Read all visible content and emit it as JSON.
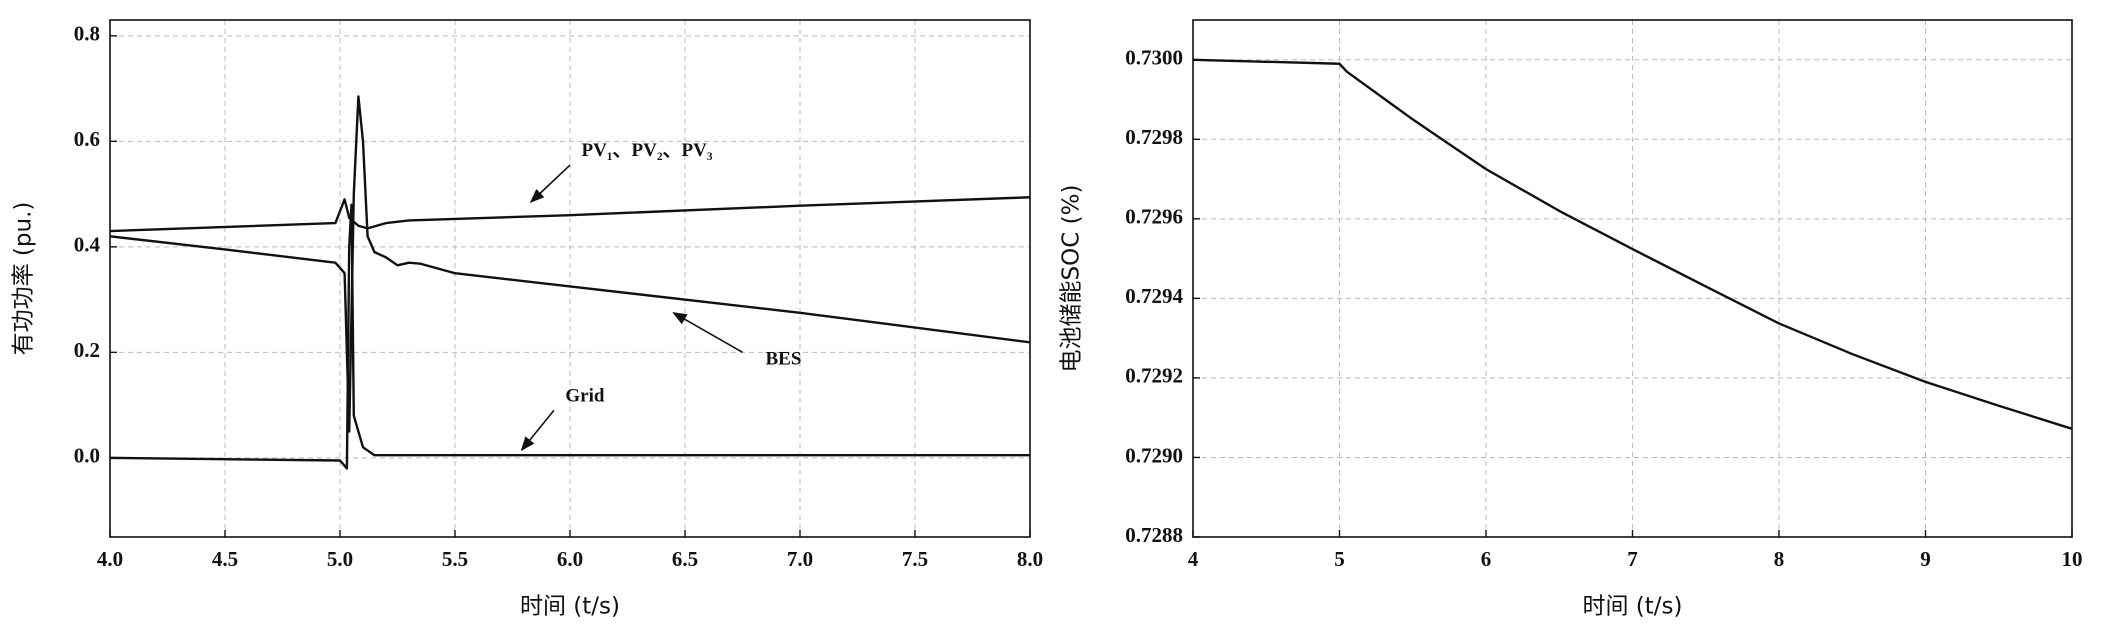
{
  "chart_data": [
    {
      "type": "line",
      "xlabel": "时间 (t/s)",
      "ylabel": "有功功率 (pu.)",
      "xlim": [
        4.0,
        8.0
      ],
      "xticks": [
        {
          "value": 4,
          "label": "4.0"
        },
        4.5,
        {
          "value": 5,
          "label": "5.0"
        },
        5.5,
        {
          "value": 6,
          "label": "6.0"
        },
        6.5,
        {
          "value": 7,
          "label": "7.0"
        },
        7.5,
        {
          "value": 8,
          "label": "8.0"
        }
      ],
      "ylim": [
        -0.15,
        0.83
      ],
      "yticks": [
        {
          "value": 0,
          "label": "0.0"
        },
        0.2,
        0.4,
        0.6,
        0.8
      ],
      "grid": true,
      "series": [
        {
          "name": "PV₁、PV₂、PV₃",
          "color": "#111111",
          "x": [
            4.0,
            4.98,
            5.02,
            5.04,
            5.08,
            5.12,
            5.2,
            5.3,
            6.0,
            7.0,
            8.0
          ],
          "values": [
            0.43,
            0.445,
            0.49,
            0.455,
            0.44,
            0.435,
            0.445,
            0.45,
            0.46,
            0.478,
            0.494
          ]
        },
        {
          "name": "BES",
          "color": "#111111",
          "x": [
            4.0,
            4.5,
            4.98,
            5.02,
            5.04,
            5.06,
            5.08,
            5.1,
            5.12,
            5.15,
            5.2,
            5.25,
            5.3,
            5.35,
            5.5,
            6.0,
            7.0,
            8.0
          ],
          "values": [
            0.42,
            0.395,
            0.37,
            0.35,
            0.05,
            0.5,
            0.685,
            0.6,
            0.42,
            0.39,
            0.38,
            0.365,
            0.37,
            0.368,
            0.35,
            0.325,
            0.275,
            0.219
          ]
        },
        {
          "name": "Grid",
          "color": "#111111",
          "x": [
            4.0,
            5.0,
            5.03,
            5.04,
            5.05,
            5.06,
            5.1,
            5.15,
            8.0
          ],
          "values": [
            0.0,
            -0.005,
            -0.02,
            0.4,
            0.48,
            0.08,
            0.02,
            0.005,
            0.005
          ]
        }
      ]
    },
    {
      "type": "line",
      "xlabel": "时间 (t/s)",
      "ylabel": "电池储能SOC (%)",
      "xlim": [
        4,
        10
      ],
      "xticks": [
        4,
        5,
        6,
        7,
        8,
        9,
        10
      ],
      "ylim": [
        0.7288,
        0.7301
      ],
      "yticks": [
        0.7288,
        {
          "value": 0.729,
          "label": "0.7290"
        },
        0.7292,
        0.7294,
        0.7296,
        0.7298,
        {
          "value": 0.73,
          "label": "0.7300"
        }
      ],
      "grid": true,
      "color": "#111111",
      "x": [
        4,
        5,
        5.05,
        5.5,
        6,
        6.5,
        7,
        7.5,
        8,
        8.5,
        9,
        9.5,
        10
      ],
      "values": [
        0.73,
        0.72999,
        0.72997,
        0.72985,
        0.729725,
        0.72962,
        0.729524,
        0.72943,
        0.729337,
        0.72926,
        0.72919,
        0.72913,
        0.729072
      ]
    }
  ]
}
